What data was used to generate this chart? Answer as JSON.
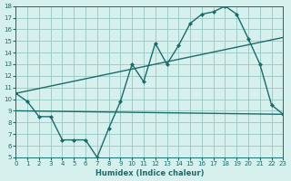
{
  "xlabel": "Humidex (Indice chaleur)",
  "bg_color": "#d6f0ee",
  "grid_color": "#a0ccc8",
  "line_color": "#1a6b6a",
  "xlim": [
    0,
    23
  ],
  "ylim": [
    5,
    18
  ],
  "xticks": [
    0,
    1,
    2,
    3,
    4,
    5,
    6,
    7,
    8,
    9,
    10,
    11,
    12,
    13,
    14,
    15,
    16,
    17,
    18,
    19,
    20,
    21,
    22,
    23
  ],
  "yticks": [
    5,
    6,
    7,
    8,
    9,
    10,
    11,
    12,
    13,
    14,
    15,
    16,
    17,
    18
  ],
  "main_x": [
    0,
    1,
    2,
    3,
    4,
    5,
    6,
    7,
    8,
    9,
    10,
    11,
    12,
    13,
    14,
    15,
    16,
    17,
    18,
    19,
    20,
    21,
    22,
    23
  ],
  "main_y": [
    10.5,
    9.8,
    8.5,
    8.5,
    6.5,
    6.5,
    6.5,
    5.0,
    7.5,
    9.8,
    13.0,
    11.5,
    14.8,
    13.0,
    14.6,
    16.5,
    17.3,
    17.5,
    18.0,
    17.3,
    15.2,
    13.0,
    9.5,
    8.7
  ],
  "line2_x": [
    0,
    23
  ],
  "line2_y": [
    9.0,
    8.7
  ],
  "line3_x": [
    0,
    23
  ],
  "line3_y": [
    10.5,
    15.3
  ]
}
